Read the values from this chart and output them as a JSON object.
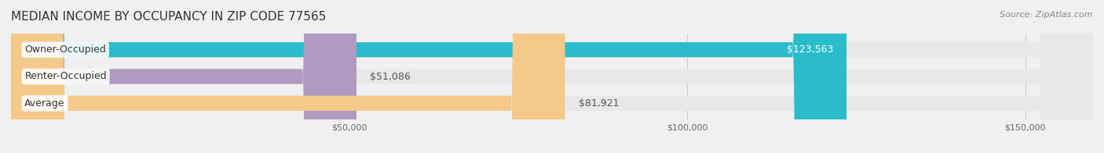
{
  "title": "MEDIAN INCOME BY OCCUPANCY IN ZIP CODE 77565",
  "source": "Source: ZipAtlas.com",
  "categories": [
    "Owner-Occupied",
    "Renter-Occupied",
    "Average"
  ],
  "values": [
    123563,
    51086,
    81921
  ],
  "bar_colors": [
    "#2bbccc",
    "#b09ac0",
    "#f5c98a"
  ],
  "label_colors": [
    "#ffffff",
    "#555555",
    "#555555"
  ],
  "value_labels": [
    "$123,563",
    "$51,086",
    "$81,921"
  ],
  "xlim": [
    0,
    160000
  ],
  "xticks": [
    0,
    50000,
    100000,
    150000
  ],
  "xticklabels": [
    "$50,000",
    "$100,000",
    "$150,000"
  ],
  "background_color": "#f0f0f0",
  "bar_background_color": "#e8e8e8",
  "title_fontsize": 11,
  "source_fontsize": 8,
  "label_fontsize": 9,
  "bar_height": 0.55
}
